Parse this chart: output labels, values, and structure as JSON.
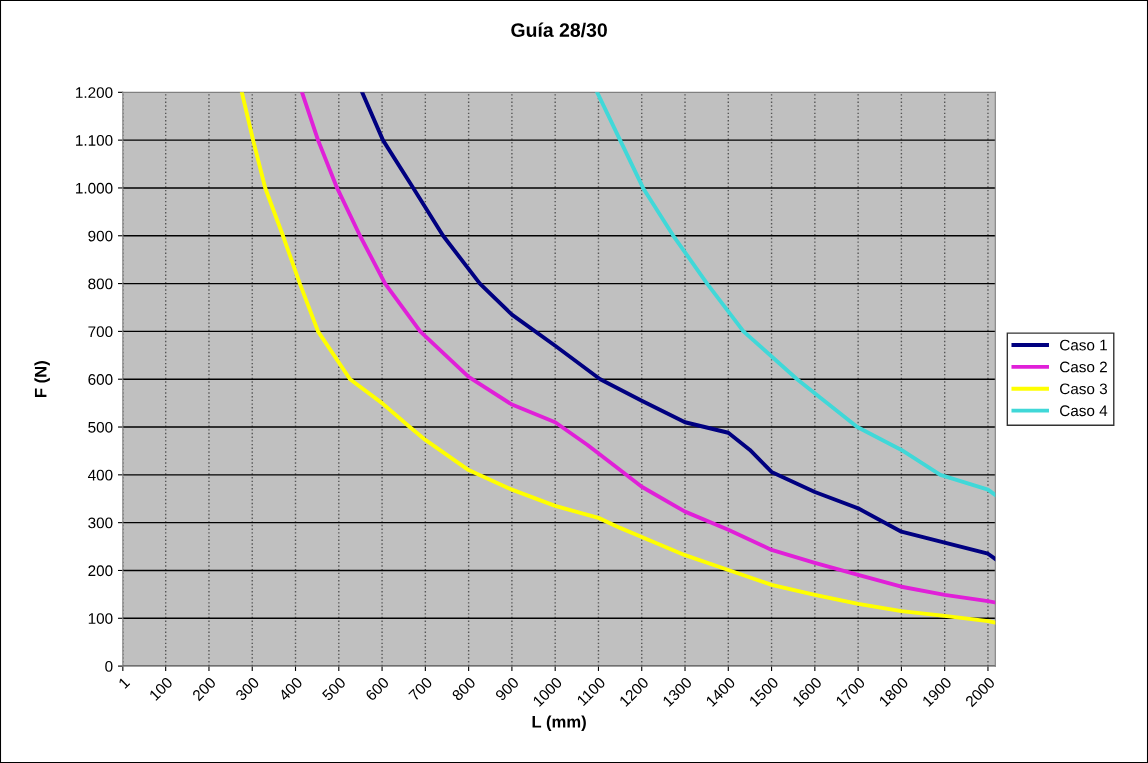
{
  "chart_data": {
    "type": "line",
    "title": "Guía 28/30",
    "xlabel": "L (mm)",
    "ylabel": "F (N)",
    "xlim": [
      1,
      2017
    ],
    "ylim": [
      0,
      1200
    ],
    "xticks": [
      1,
      100,
      200,
      300,
      400,
      500,
      600,
      700,
      800,
      900,
      1000,
      1100,
      1200,
      1300,
      1400,
      1500,
      1600,
      1700,
      1800,
      1900,
      2000
    ],
    "yticks": [
      0,
      100,
      200,
      300,
      400,
      500,
      600,
      700,
      800,
      900,
      {
        "value": 1000,
        "label": "1.000"
      },
      {
        "value": 1100,
        "label": "1.100"
      },
      {
        "value": 1200,
        "label": "1.200"
      }
    ],
    "grid": true,
    "legend": "right",
    "marker": "none",
    "line_style": "solid",
    "series": [
      {
        "name": "Caso 1",
        "color": "#000080",
        "x": [
          554,
          602,
          672,
          741,
          826,
          900,
          1000,
          1104,
          1200,
          1300,
          1400,
          1450,
          1500,
          1600,
          1700,
          1800,
          1900,
          2000,
          2017
        ],
        "values": [
          1200,
          1100,
          1000,
          900,
          800,
          735,
          670,
          600,
          555,
          510,
          488,
          452,
          406,
          364,
          330,
          281,
          258,
          235,
          224
        ]
      },
      {
        "name": "Caso 2",
        "color": "#e020d8",
        "x": [
          415,
          452,
          496,
          549,
          607,
          688,
          800,
          900,
          1000,
          1074,
          1150,
          1200,
          1300,
          1400,
          1500,
          1600,
          1700,
          1800,
          1900,
          2000,
          2017
        ],
        "values": [
          1200,
          1100,
          1000,
          900,
          800,
          700,
          605,
          547,
          510,
          463,
          410,
          375,
          323,
          285,
          243,
          216,
          191,
          166,
          149,
          136,
          133
        ]
      },
      {
        "name": "Caso 3",
        "color": "#ffff00",
        "x": [
          276,
          302,
          330,
          371,
          410,
          452,
          526,
          600,
          664,
          700,
          800,
          900,
          1000,
          1100,
          1150,
          1200,
          1300,
          1400,
          1500,
          1600,
          1700,
          1800,
          1900,
          2000,
          2017
        ],
        "values": [
          1200,
          1100,
          1000,
          900,
          800,
          700,
          600,
          550,
          500,
          473,
          410,
          369,
          335,
          310,
          289,
          270,
          232,
          201,
          170,
          149,
          130,
          115,
          105,
          94,
          91
        ]
      },
      {
        "name": "Caso 4",
        "color": "#40d8d8",
        "x": [
          1097,
          1150,
          1203,
          1273,
          1351,
          1435,
          1559,
          1698,
          1800,
          1890,
          2000,
          2017
        ],
        "values": [
          1200,
          1100,
          1000,
          900,
          800,
          700,
          600,
          500,
          452,
          400,
          369,
          358
        ]
      }
    ]
  }
}
